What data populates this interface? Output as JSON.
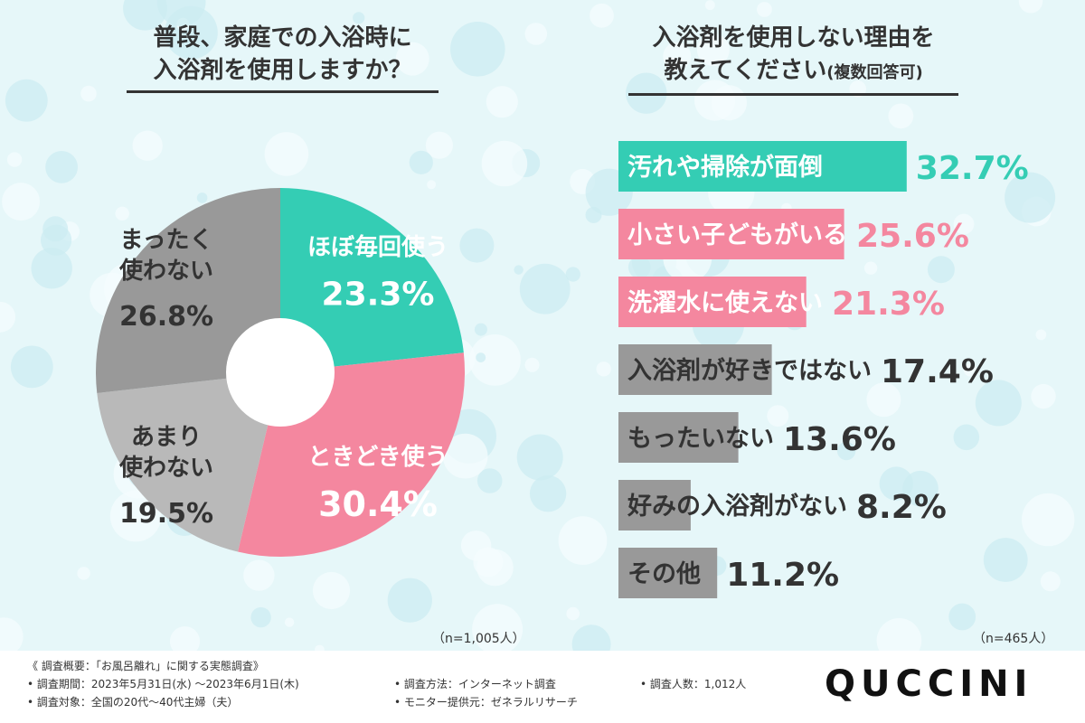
{
  "left_title_line1": "普段、家庭での入浴時に",
  "left_title_line2": "入浴剤を使用しますか？",
  "right_title_line1": "入浴剤を使用しない理由を",
  "right_title_line2_main": "教えてください",
  "right_title_line2_small": "(複数回答可)",
  "left_n": "（n=1,005人）",
  "right_n": "（n=465人）",
  "chart_data": [
    {
      "type": "pie",
      "title": "普段、家庭での入浴時に入浴剤を使用しますか？",
      "note": "（n=1,005人）",
      "slices": [
        {
          "label": "ほぼ毎回使う",
          "value": 23.3,
          "display": "23.3%",
          "color": "#34cdb4"
        },
        {
          "label": "ときどき使う",
          "value": 30.4,
          "display": "30.4%",
          "color": "#f4879f"
        },
        {
          "label": "あまり使わない",
          "label_lines": [
            "あまり",
            "使わない"
          ],
          "value": 19.5,
          "display": "19.5%",
          "color": "#b9b9b9"
        },
        {
          "label": "まったく使わない",
          "label_lines": [
            "まったく",
            "使わない"
          ],
          "value": 26.8,
          "display": "26.8%",
          "color": "#999999"
        }
      ]
    },
    {
      "type": "bar",
      "orientation": "horizontal",
      "title": "入浴剤を使用しない理由を教えてください(複数回答可)",
      "note": "（n=465人）",
      "categories": [
        "汚れや掃除が面倒",
        "小さい子どもがいる",
        "洗濯水に使えない",
        "入浴剤が好きではない",
        "もったいない",
        "好みの入浴剤がない",
        "その他"
      ],
      "values": [
        32.7,
        25.6,
        21.3,
        17.4,
        13.6,
        8.2,
        11.2
      ],
      "display": [
        "32.7%",
        "25.6%",
        "21.3%",
        "17.4%",
        "13.6%",
        "8.2%",
        "11.2%"
      ],
      "colors": [
        "#34cdb4",
        "#f4879f",
        "#f4879f",
        "#999999",
        "#999999",
        "#999999",
        "#999999"
      ],
      "label_colors": [
        "#ffffff",
        "#ffffff",
        "#ffffff",
        "#333333",
        "#333333",
        "#333333",
        "#333333"
      ],
      "value_colors": [
        "#34cdb4",
        "#f4879f",
        "#f4879f",
        "#333333",
        "#333333",
        "#333333",
        "#333333"
      ]
    }
  ],
  "footer": {
    "line1": "《 調査概要：「お風呂離れ」に関する実態調査》",
    "period": "• 調査期間：2023年5月31日(水) ～2023年6月1日(木)",
    "target": "• 調査対象：全国の20代～40代主婦（夫）",
    "method": "• 調査方法：インターネット調査",
    "provider": "• モニター提供元：ゼネラルリサーチ",
    "count": "• 調査人数：1,012人"
  },
  "logo": "QUCCINI"
}
